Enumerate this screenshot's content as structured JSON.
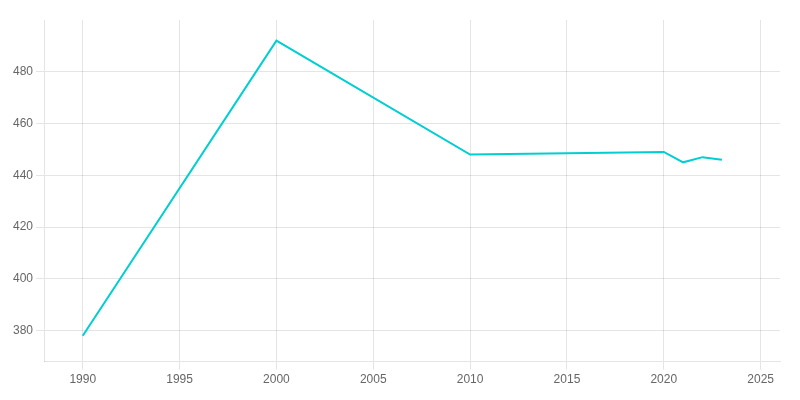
{
  "chart_data": {
    "type": "line",
    "x": [
      1990,
      2000,
      2010,
      2020,
      2021,
      2022,
      2023
    ],
    "values": [
      378,
      492,
      448,
      449,
      445,
      447,
      446
    ],
    "color": "#00CED1",
    "xlim": [
      1988,
      2026
    ],
    "ylim": [
      368,
      500
    ],
    "xticks": [
      1990,
      1995,
      2000,
      2005,
      2010,
      2015,
      2020,
      2025
    ],
    "yticks": [
      380,
      400,
      420,
      440,
      460,
      480
    ],
    "grid": true
  }
}
